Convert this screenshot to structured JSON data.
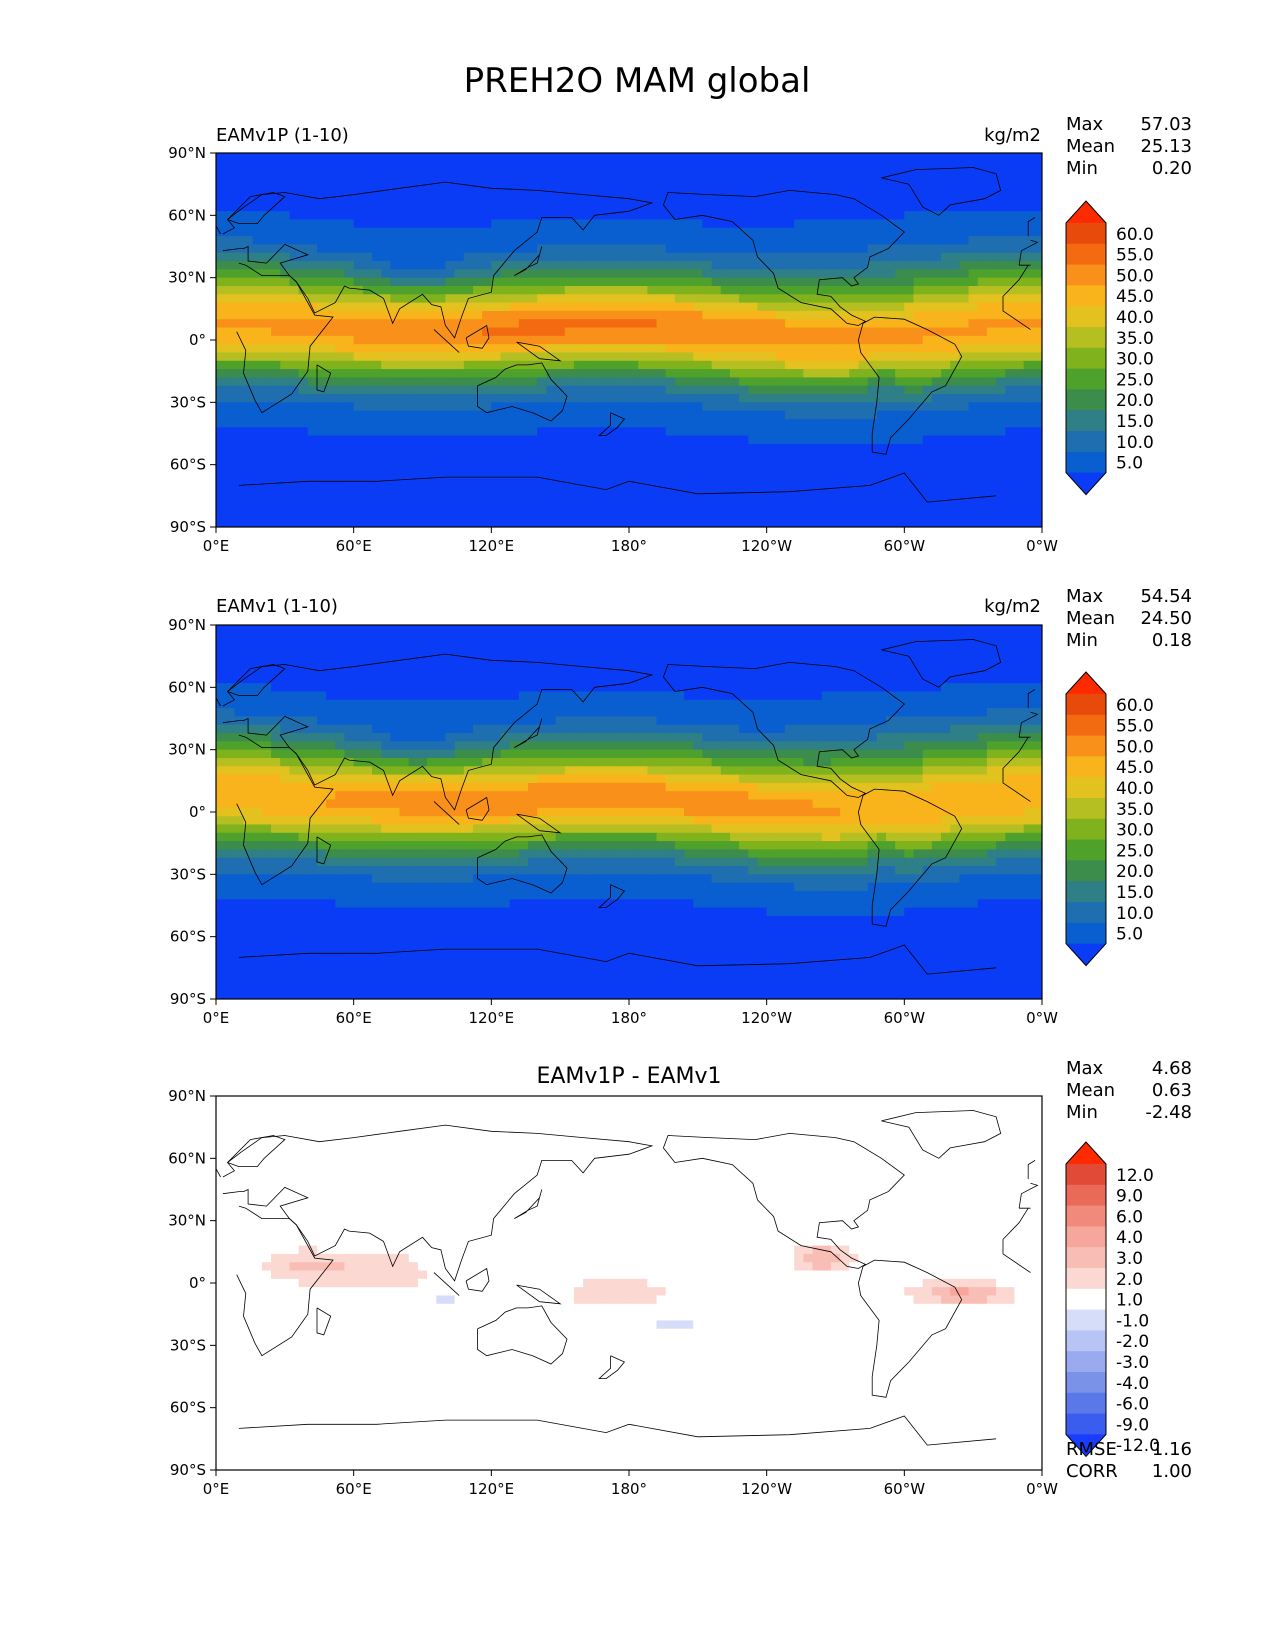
{
  "figure_title": "PREH2O MAM global",
  "palettes": {
    "field": [
      "#0a3cf5",
      "#0a5fd0",
      "#1f6fb0",
      "#2f7f86",
      "#3c8c4c",
      "#4ea22c",
      "#7fb21c",
      "#b6bf22",
      "#e3c220",
      "#f8b41a",
      "#f8901a",
      "#f46a10",
      "#e84a0c",
      "#ff2a00"
    ],
    "diff": [
      "#1a3cff",
      "#3a5df0",
      "#5a78e8",
      "#7a92e8",
      "#9aaaee",
      "#b8c4f4",
      "#d6ddf8",
      "#ffffff",
      "#fbd8d2",
      "#f8beb6",
      "#f6a69a",
      "#f18a7a",
      "#ea6a58",
      "#e24a38",
      "#ff2a00"
    ]
  },
  "chart_data": [
    {
      "type": "heatmap",
      "panel_label": "EAMv1P (1-10)",
      "units": "kg/m2",
      "stats": [
        {
          "label": "Max",
          "value": "57.03"
        },
        {
          "label": "Mean",
          "value": "25.13"
        },
        {
          "label": "Min",
          "value": "0.20"
        }
      ],
      "colorbar": {
        "levels": [
          "60.0",
          "55.0",
          "50.0",
          "45.0",
          "40.0",
          "35.0",
          "30.0",
          "25.0",
          "20.0",
          "15.0",
          "10.0",
          "5.0"
        ],
        "extend": "both",
        "palette": "field"
      },
      "x_ticks": [
        "0°E",
        "60°E",
        "120°E",
        "180°",
        "120°W",
        "60°W",
        "0°W"
      ],
      "y_ticks": [
        "90°N",
        "60°N",
        "30°N",
        "0°",
        "30°S",
        "60°S",
        "90°S"
      ],
      "xlim": [
        0,
        360
      ],
      "ylim": [
        -90,
        90
      ],
      "field_scale": 1.0
    },
    {
      "type": "heatmap",
      "panel_label": "EAMv1 (1-10)",
      "units": "kg/m2",
      "stats": [
        {
          "label": "Max",
          "value": "54.54"
        },
        {
          "label": "Mean",
          "value": "24.50"
        },
        {
          "label": "Min",
          "value": "0.18"
        }
      ],
      "colorbar": {
        "levels": [
          "60.0",
          "55.0",
          "50.0",
          "45.0",
          "40.0",
          "35.0",
          "30.0",
          "25.0",
          "20.0",
          "15.0",
          "10.0",
          "5.0"
        ],
        "extend": "both",
        "palette": "field"
      },
      "x_ticks": [
        "0°E",
        "60°E",
        "120°E",
        "180°",
        "120°W",
        "60°W",
        "0°W"
      ],
      "y_ticks": [
        "90°N",
        "60°N",
        "30°N",
        "0°",
        "30°S",
        "60°S",
        "90°S"
      ],
      "xlim": [
        0,
        360
      ],
      "ylim": [
        -90,
        90
      ],
      "field_scale": 0.97
    },
    {
      "type": "heatmap",
      "title": "EAMv1P - EAMv1",
      "stats": [
        {
          "label": "Max",
          "value": "4.68"
        },
        {
          "label": "Mean",
          "value": "0.63"
        },
        {
          "label": "Min",
          "value": "-2.48"
        }
      ],
      "colorbar": {
        "levels": [
          "12.0",
          "9.0",
          "6.0",
          "4.0",
          "3.0",
          "2.0",
          "1.0",
          "-1.0",
          "-2.0",
          "-3.0",
          "-4.0",
          "-6.0",
          "-9.0",
          "-12.0"
        ],
        "extend": "both",
        "palette": "diff"
      },
      "metrics": [
        {
          "label": "RMSE",
          "value": "1.16"
        },
        {
          "label": "CORR",
          "value": "1.00"
        }
      ],
      "x_ticks": [
        "0°E",
        "60°E",
        "120°E",
        "180°",
        "120°W",
        "60°W",
        "0°W"
      ],
      "y_ticks": [
        "90°N",
        "60°N",
        "30°N",
        "0°",
        "30°S",
        "60°S",
        "90°S"
      ],
      "xlim": [
        0,
        360
      ],
      "ylim": [
        -90,
        90
      ]
    }
  ]
}
